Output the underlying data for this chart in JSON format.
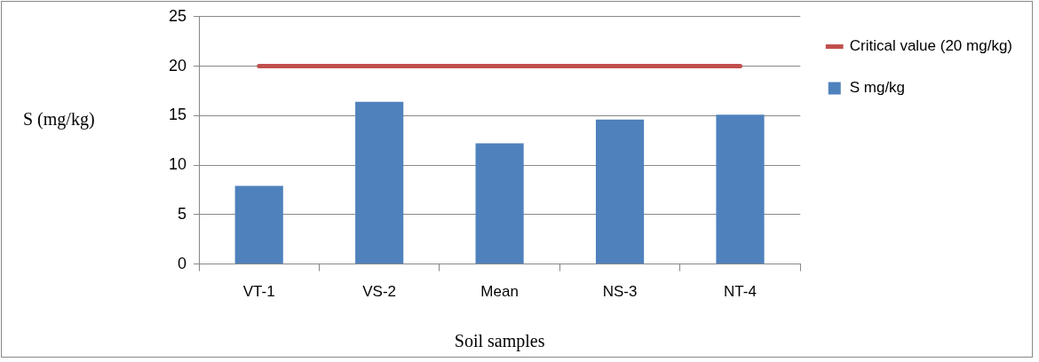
{
  "chart_data": {
    "type": "bar",
    "xlabel": "Soil samples",
    "ylabel": "S (mg/kg)",
    "categories": [
      "VT-1",
      "VS-2",
      "Mean",
      "NS-3",
      "NT-4"
    ],
    "series": [
      {
        "name": "S mg/kg",
        "color": "#4f81bd",
        "values": [
          7.9,
          16.4,
          12.2,
          14.6,
          15.1
        ]
      },
      {
        "name": "Critical value (20 mg/kg)",
        "type": "line",
        "color": "#c0504d",
        "values": [
          20,
          20,
          20,
          20,
          20
        ]
      }
    ],
    "ylim": [
      0,
      25
    ],
    "yticks": [
      0,
      5,
      10,
      15,
      20,
      25
    ],
    "grid": "y",
    "legend": "right",
    "marker": "none"
  }
}
